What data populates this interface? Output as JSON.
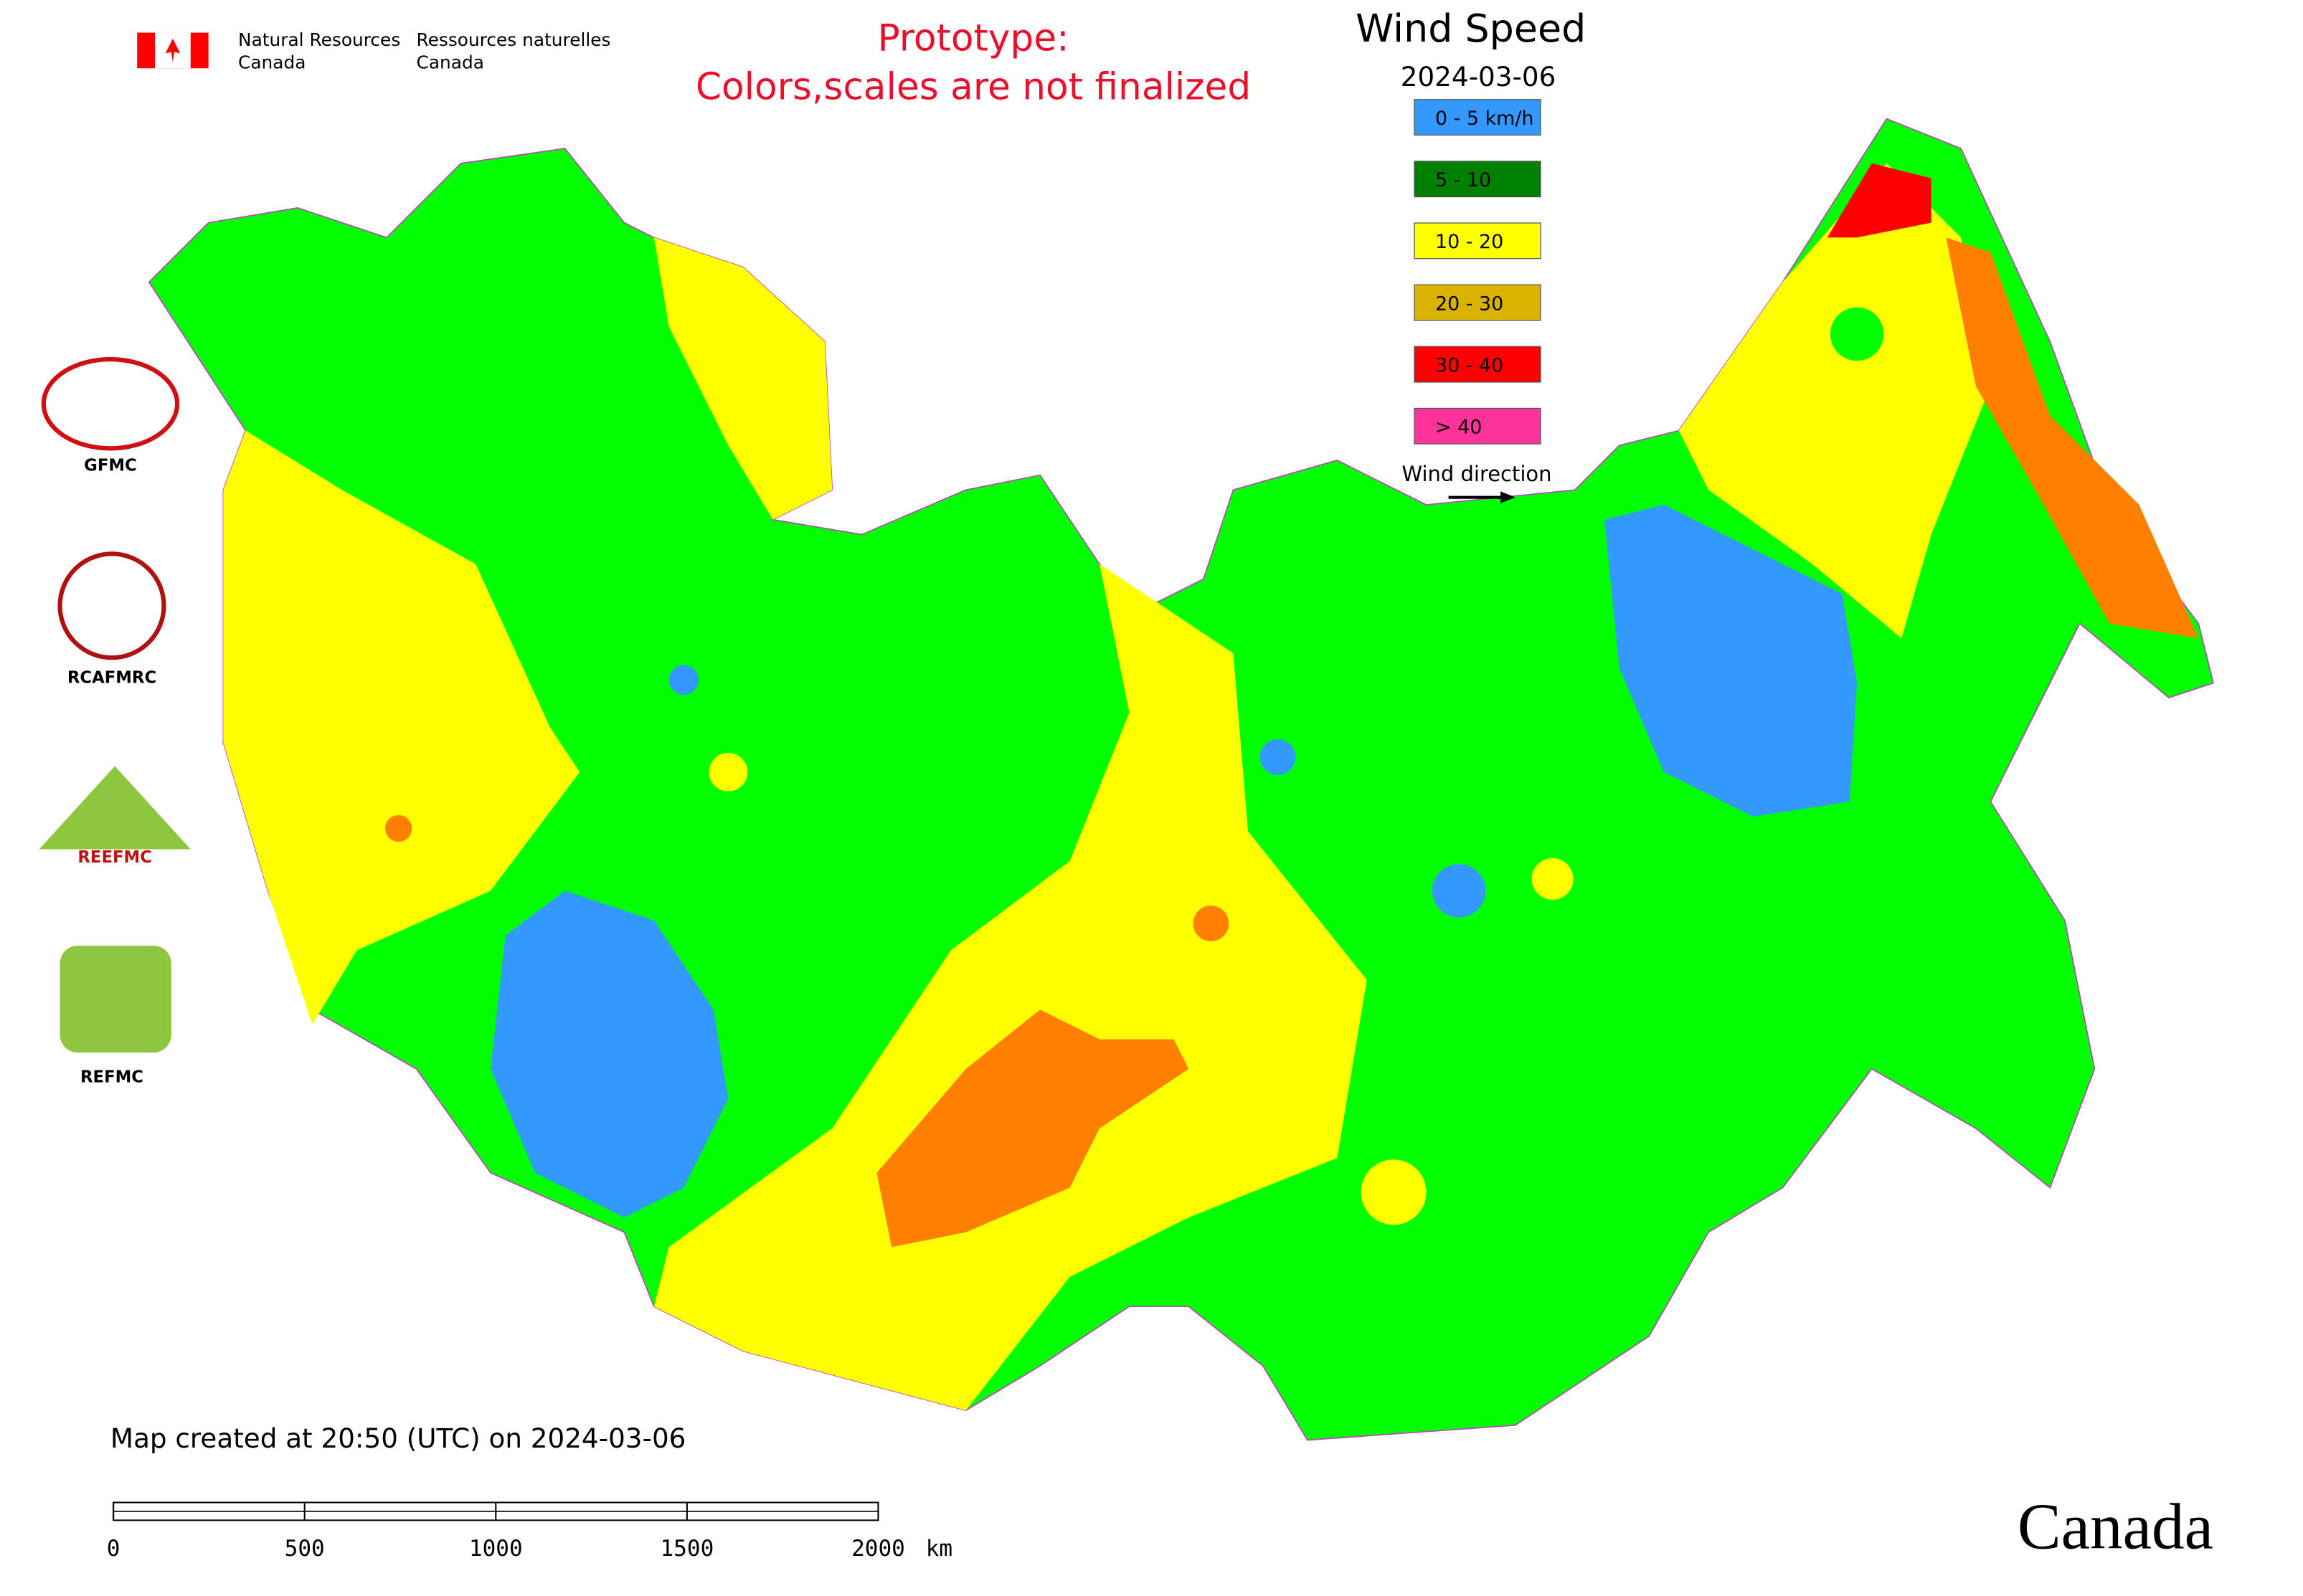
{
  "header": {
    "agency_en": [
      "Natural Resources",
      "Canada"
    ],
    "agency_fr": [
      "Ressources naturelles",
      "Canada"
    ],
    "notice": [
      "Prototype:",
      "Colors,scales are not finalized"
    ]
  },
  "legend": {
    "title": "Wind Speed",
    "date": "2024-03-06",
    "items": [
      {
        "label": "0 - 5 km/h",
        "color": "#3399ff"
      },
      {
        "label": "5 - 10",
        "color": "#008000"
      },
      {
        "label": "10 - 20",
        "color": "#ffff00"
      },
      {
        "label": "20 - 30",
        "color": "#d9b300"
      },
      {
        "label": "30 - 40",
        "color": "#ff0000"
      },
      {
        "label": "> 40",
        "color": "#ff3399"
      }
    ],
    "wind_direction": "Wind direction"
  },
  "map_colors": {
    "land": "#00ff00",
    "low": "#3399ff",
    "mid": "#ffff00",
    "high": "#ff8000",
    "top": "#ff0000"
  },
  "centers": [
    "GFMC",
    "RCAFMRC",
    "REEFMC",
    "REFMC"
  ],
  "footer": {
    "created": "Map created at 20:50 (UTC) on 2024-03-06",
    "scale_ticks": [
      0,
      500,
      1000,
      1500,
      2000
    ],
    "scale_unit": "km",
    "wordmark": "Canada"
  }
}
